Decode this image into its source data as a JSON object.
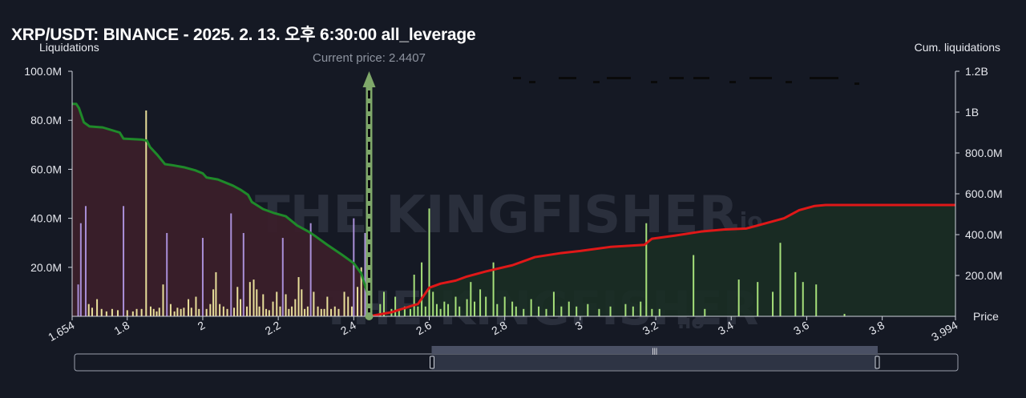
{
  "title": "XRP/USDT: BINANCE - 2025. 2. 13. 오후 6:30:00 all_leverage",
  "watermark": {
    "main": "THE KINGFISHER",
    "suffix": ".io"
  },
  "colors": {
    "background": "#151924",
    "short_liq_bar": "#a98fd8",
    "long_liq_bar": "#e8df9a",
    "above_bar": "#a6e07a",
    "cum_long_line": "#1f8a2a",
    "cum_short_line": "#e01818",
    "cum_long_fill": "#3a1f2a",
    "cum_short_fill": "#1a2e24",
    "current_price": "#7fa86a"
  },
  "chart_data": {
    "type": "bar",
    "title": "XRP/USDT: BINANCE - 2025. 2. 13. 오후 6:30:00 all_leverage",
    "xlabel": "Price",
    "ylabel_left": "Liquidations",
    "ylabel_right": "Cum. liquidations",
    "xlim": [
      1.654,
      3.994
    ],
    "ylim_left": [
      0,
      100000000
    ],
    "ylim_right": [
      0,
      1200000000
    ],
    "x_ticks": [
      "1.654",
      "1.8",
      "2",
      "2.2",
      "2.4",
      "2.6",
      "2.8",
      "3",
      "3.2",
      "3.4",
      "3.6",
      "3.8",
      "3.994"
    ],
    "x_tick_values": [
      1.654,
      1.8,
      2,
      2.2,
      2.4,
      2.6,
      2.8,
      3,
      3.2,
      3.4,
      3.6,
      3.8,
      3.994
    ],
    "y_ticks_left": [
      "20.0M",
      "40.0M",
      "60.0M",
      "80.0M",
      "100.0M"
    ],
    "y_tick_values_left": [
      20000000,
      40000000,
      60000000,
      80000000,
      100000000
    ],
    "y_ticks_right": [
      "200.0M",
      "400.0M",
      "600.0M",
      "800.0M",
      "1B",
      "1.2B"
    ],
    "y_tick_values_right": [
      200000000,
      400000000,
      600000000,
      800000000,
      1000000000,
      1200000000
    ],
    "current_price": 2.4407,
    "current_price_label": "Current price: 2.4407",
    "liquidation_bars": [
      {
        "x": 1.67,
        "v": 13000000,
        "c": "short"
      },
      {
        "x": 1.677,
        "v": 38000000,
        "c": "short"
      },
      {
        "x": 1.69,
        "v": 45000000,
        "c": "short"
      },
      {
        "x": 1.698,
        "v": 5000000,
        "c": "long"
      },
      {
        "x": 1.707,
        "v": 3500000,
        "c": "long"
      },
      {
        "x": 1.72,
        "v": 7000000,
        "c": "long"
      },
      {
        "x": 1.732,
        "v": 3000000,
        "c": "long"
      },
      {
        "x": 1.745,
        "v": 2000000,
        "c": "long"
      },
      {
        "x": 1.76,
        "v": 3000000,
        "c": "long"
      },
      {
        "x": 1.775,
        "v": 2500000,
        "c": "long"
      },
      {
        "x": 1.79,
        "v": 45000000,
        "c": "short"
      },
      {
        "x": 1.8,
        "v": 2500000,
        "c": "long"
      },
      {
        "x": 1.815,
        "v": 2000000,
        "c": "long"
      },
      {
        "x": 1.825,
        "v": 3000000,
        "c": "long"
      },
      {
        "x": 1.838,
        "v": 3000000,
        "c": "long"
      },
      {
        "x": 1.85,
        "v": 84000000,
        "c": "long"
      },
      {
        "x": 1.862,
        "v": 4000000,
        "c": "long"
      },
      {
        "x": 1.87,
        "v": 3000000,
        "c": "long"
      },
      {
        "x": 1.878,
        "v": 2000000,
        "c": "long"
      },
      {
        "x": 1.885,
        "v": 3500000,
        "c": "long"
      },
      {
        "x": 1.895,
        "v": 13000000,
        "c": "long"
      },
      {
        "x": 1.905,
        "v": 34000000,
        "c": "short"
      },
      {
        "x": 1.915,
        "v": 5000000,
        "c": "long"
      },
      {
        "x": 1.925,
        "v": 2000000,
        "c": "long"
      },
      {
        "x": 1.933,
        "v": 3500000,
        "c": "long"
      },
      {
        "x": 1.942,
        "v": 3000000,
        "c": "long"
      },
      {
        "x": 1.95,
        "v": 3500000,
        "c": "long"
      },
      {
        "x": 1.962,
        "v": 7000000,
        "c": "long"
      },
      {
        "x": 1.97,
        "v": 3500000,
        "c": "long"
      },
      {
        "x": 1.982,
        "v": 8000000,
        "c": "long"
      },
      {
        "x": 1.99,
        "v": 3000000,
        "c": "long"
      },
      {
        "x": 2,
        "v": 32000000,
        "c": "short"
      },
      {
        "x": 2.01,
        "v": 3000000,
        "c": "long"
      },
      {
        "x": 2.02,
        "v": 5000000,
        "c": "long"
      },
      {
        "x": 2.028,
        "v": 11000000,
        "c": "long"
      },
      {
        "x": 2.035,
        "v": 18000000,
        "c": "long"
      },
      {
        "x": 2.045,
        "v": 5000000,
        "c": "long"
      },
      {
        "x": 2.055,
        "v": 4000000,
        "c": "long"
      },
      {
        "x": 2.065,
        "v": 3000000,
        "c": "long"
      },
      {
        "x": 2.075,
        "v": 42000000,
        "c": "short"
      },
      {
        "x": 2.083,
        "v": 3500000,
        "c": "long"
      },
      {
        "x": 2.092,
        "v": 12000000,
        "c": "long"
      },
      {
        "x": 2.1,
        "v": 7000000,
        "c": "long"
      },
      {
        "x": 2.108,
        "v": 34000000,
        "c": "short"
      },
      {
        "x": 2.117,
        "v": 4000000,
        "c": "long"
      },
      {
        "x": 2.125,
        "v": 14000000,
        "c": "long"
      },
      {
        "x": 2.135,
        "v": 15000000,
        "c": "long"
      },
      {
        "x": 2.143,
        "v": 11000000,
        "c": "long"
      },
      {
        "x": 2.15,
        "v": 4000000,
        "c": "long"
      },
      {
        "x": 2.16,
        "v": 9000000,
        "c": "long"
      },
      {
        "x": 2.168,
        "v": 3000000,
        "c": "long"
      },
      {
        "x": 2.176,
        "v": 2500000,
        "c": "long"
      },
      {
        "x": 2.186,
        "v": 6000000,
        "c": "long"
      },
      {
        "x": 2.196,
        "v": 10000000,
        "c": "long"
      },
      {
        "x": 2.205,
        "v": 4000000,
        "c": "long"
      },
      {
        "x": 2.212,
        "v": 32000000,
        "c": "short"
      },
      {
        "x": 2.22,
        "v": 9000000,
        "c": "long"
      },
      {
        "x": 2.228,
        "v": 3000000,
        "c": "long"
      },
      {
        "x": 2.236,
        "v": 4000000,
        "c": "long"
      },
      {
        "x": 2.245,
        "v": 7000000,
        "c": "long"
      },
      {
        "x": 2.254,
        "v": 16000000,
        "c": "long"
      },
      {
        "x": 2.262,
        "v": 11000000,
        "c": "long"
      },
      {
        "x": 2.27,
        "v": 3000000,
        "c": "long"
      },
      {
        "x": 2.278,
        "v": 4000000,
        "c": "long"
      },
      {
        "x": 2.286,
        "v": 38000000,
        "c": "short"
      },
      {
        "x": 2.294,
        "v": 10000000,
        "c": "long"
      },
      {
        "x": 2.305,
        "v": 4000000,
        "c": "long"
      },
      {
        "x": 2.314,
        "v": 3000000,
        "c": "long"
      },
      {
        "x": 2.322,
        "v": 3000000,
        "c": "long"
      },
      {
        "x": 2.33,
        "v": 8000000,
        "c": "long"
      },
      {
        "x": 2.34,
        "v": 3000000,
        "c": "long"
      },
      {
        "x": 2.35,
        "v": 4000000,
        "c": "long"
      },
      {
        "x": 2.36,
        "v": 3000000,
        "c": "long"
      },
      {
        "x": 2.375,
        "v": 10000000,
        "c": "long"
      },
      {
        "x": 2.385,
        "v": 8000000,
        "c": "long"
      },
      {
        "x": 2.395,
        "v": 4000000,
        "c": "long"
      },
      {
        "x": 2.4,
        "v": 40000000,
        "c": "short"
      },
      {
        "x": 2.41,
        "v": 12000000,
        "c": "long"
      },
      {
        "x": 2.42,
        "v": 20000000,
        "c": "long"
      },
      {
        "x": 2.43,
        "v": 34000000,
        "c": "short"
      },
      {
        "x": 2.47,
        "v": 5000000,
        "c": "above"
      },
      {
        "x": 2.48,
        "v": 10000000,
        "c": "above"
      },
      {
        "x": 2.5,
        "v": 3000000,
        "c": "above"
      },
      {
        "x": 2.51,
        "v": 8000000,
        "c": "above"
      },
      {
        "x": 2.52,
        "v": 3000000,
        "c": "above"
      },
      {
        "x": 2.535,
        "v": 4000000,
        "c": "above"
      },
      {
        "x": 2.55,
        "v": 3000000,
        "c": "above"
      },
      {
        "x": 2.56,
        "v": 17000000,
        "c": "above"
      },
      {
        "x": 2.57,
        "v": 4000000,
        "c": "above"
      },
      {
        "x": 2.58,
        "v": 22000000,
        "c": "above"
      },
      {
        "x": 2.59,
        "v": 4000000,
        "c": "above"
      },
      {
        "x": 2.6,
        "v": 44000000,
        "c": "above"
      },
      {
        "x": 2.61,
        "v": 10000000,
        "c": "above"
      },
      {
        "x": 2.62,
        "v": 5000000,
        "c": "above"
      },
      {
        "x": 2.63,
        "v": 3000000,
        "c": "above"
      },
      {
        "x": 2.64,
        "v": 6000000,
        "c": "above"
      },
      {
        "x": 2.65,
        "v": 5000000,
        "c": "above"
      },
      {
        "x": 2.67,
        "v": 8000000,
        "c": "above"
      },
      {
        "x": 2.68,
        "v": 4000000,
        "c": "above"
      },
      {
        "x": 2.7,
        "v": 7000000,
        "c": "above"
      },
      {
        "x": 2.71,
        "v": 14000000,
        "c": "above"
      },
      {
        "x": 2.72,
        "v": 6000000,
        "c": "above"
      },
      {
        "x": 2.735,
        "v": 11000000,
        "c": "above"
      },
      {
        "x": 2.75,
        "v": 8000000,
        "c": "above"
      },
      {
        "x": 2.77,
        "v": 22000000,
        "c": "above"
      },
      {
        "x": 2.78,
        "v": 5000000,
        "c": "above"
      },
      {
        "x": 2.8,
        "v": 8000000,
        "c": "above"
      },
      {
        "x": 2.82,
        "v": 6000000,
        "c": "above"
      },
      {
        "x": 2.83,
        "v": 4000000,
        "c": "above"
      },
      {
        "x": 2.85,
        "v": 3000000,
        "c": "above"
      },
      {
        "x": 2.87,
        "v": 7000000,
        "c": "above"
      },
      {
        "x": 2.89,
        "v": 4000000,
        "c": "above"
      },
      {
        "x": 2.91,
        "v": 3000000,
        "c": "above"
      },
      {
        "x": 2.93,
        "v": 10000000,
        "c": "above"
      },
      {
        "x": 2.95,
        "v": 4000000,
        "c": "above"
      },
      {
        "x": 2.97,
        "v": 6000000,
        "c": "above"
      },
      {
        "x": 2.99,
        "v": 4000000,
        "c": "above"
      },
      {
        "x": 3.02,
        "v": 5000000,
        "c": "above"
      },
      {
        "x": 3.05,
        "v": 3000000,
        "c": "above"
      },
      {
        "x": 3.08,
        "v": 4000000,
        "c": "above"
      },
      {
        "x": 3.12,
        "v": 5000000,
        "c": "above"
      },
      {
        "x": 3.14,
        "v": 4000000,
        "c": "above"
      },
      {
        "x": 3.16,
        "v": 6000000,
        "c": "above"
      },
      {
        "x": 3.175,
        "v": 38000000,
        "c": "above"
      },
      {
        "x": 3.19,
        "v": 3000000,
        "c": "above"
      },
      {
        "x": 3.21,
        "v": 3000000,
        "c": "above"
      },
      {
        "x": 3.3,
        "v": 25000000,
        "c": "above"
      },
      {
        "x": 3.33,
        "v": 3000000,
        "c": "above"
      },
      {
        "x": 3.42,
        "v": 15000000,
        "c": "above"
      },
      {
        "x": 3.47,
        "v": 14000000,
        "c": "above"
      },
      {
        "x": 3.51,
        "v": 10000000,
        "c": "above"
      },
      {
        "x": 3.53,
        "v": 30000000,
        "c": "above"
      },
      {
        "x": 3.57,
        "v": 18000000,
        "c": "above"
      },
      {
        "x": 3.59,
        "v": 14000000,
        "c": "above"
      },
      {
        "x": 3.625,
        "v": 13000000,
        "c": "above"
      },
      {
        "x": 3.7,
        "v": 1000000,
        "c": "above"
      }
    ],
    "cum_long": [
      [
        1.654,
        1040000000
      ],
      [
        1.665,
        1040000000
      ],
      [
        1.672,
        1020000000
      ],
      [
        1.685,
        950000000
      ],
      [
        1.7,
        930000000
      ],
      [
        1.735,
        925000000
      ],
      [
        1.78,
        900000000
      ],
      [
        1.79,
        870000000
      ],
      [
        1.84,
        865000000
      ],
      [
        1.852,
        860000000
      ],
      [
        1.86,
        830000000
      ],
      [
        1.88,
        790000000
      ],
      [
        1.9,
        745000000
      ],
      [
        1.92,
        740000000
      ],
      [
        1.95,
        730000000
      ],
      [
        1.98,
        715000000
      ],
      [
        2,
        700000000
      ],
      [
        2.01,
        680000000
      ],
      [
        2.04,
        670000000
      ],
      [
        2.08,
        640000000
      ],
      [
        2.1,
        620000000
      ],
      [
        2.12,
        595000000
      ],
      [
        2.13,
        560000000
      ],
      [
        2.16,
        525000000
      ],
      [
        2.19,
        505000000
      ],
      [
        2.22,
        490000000
      ],
      [
        2.25,
        445000000
      ],
      [
        2.28,
        415000000
      ],
      [
        2.3,
        390000000
      ],
      [
        2.33,
        350000000
      ],
      [
        2.37,
        300000000
      ],
      [
        2.4,
        260000000
      ],
      [
        2.42,
        210000000
      ],
      [
        2.435,
        120000000
      ],
      [
        2.4407,
        0
      ]
    ],
    "cum_short": [
      [
        2.4407,
        0
      ],
      [
        2.5,
        20000000
      ],
      [
        2.56,
        55000000
      ],
      [
        2.57,
        60000000
      ],
      [
        2.6,
        140000000
      ],
      [
        2.63,
        160000000
      ],
      [
        2.67,
        175000000
      ],
      [
        2.7,
        195000000
      ],
      [
        2.75,
        220000000
      ],
      [
        2.82,
        250000000
      ],
      [
        2.88,
        290000000
      ],
      [
        2.95,
        310000000
      ],
      [
        3,
        320000000
      ],
      [
        3.08,
        340000000
      ],
      [
        3.17,
        350000000
      ],
      [
        3.19,
        380000000
      ],
      [
        3.25,
        395000000
      ],
      [
        3.32,
        415000000
      ],
      [
        3.38,
        425000000
      ],
      [
        3.44,
        430000000
      ],
      [
        3.47,
        445000000
      ],
      [
        3.54,
        480000000
      ],
      [
        3.58,
        520000000
      ],
      [
        3.62,
        540000000
      ],
      [
        3.65,
        545000000
      ],
      [
        3.8,
        545000000
      ],
      [
        3.994,
        545000000
      ]
    ]
  },
  "navigator": {
    "grip": "|||",
    "window_start": 2.6,
    "window_end": 3.994
  }
}
